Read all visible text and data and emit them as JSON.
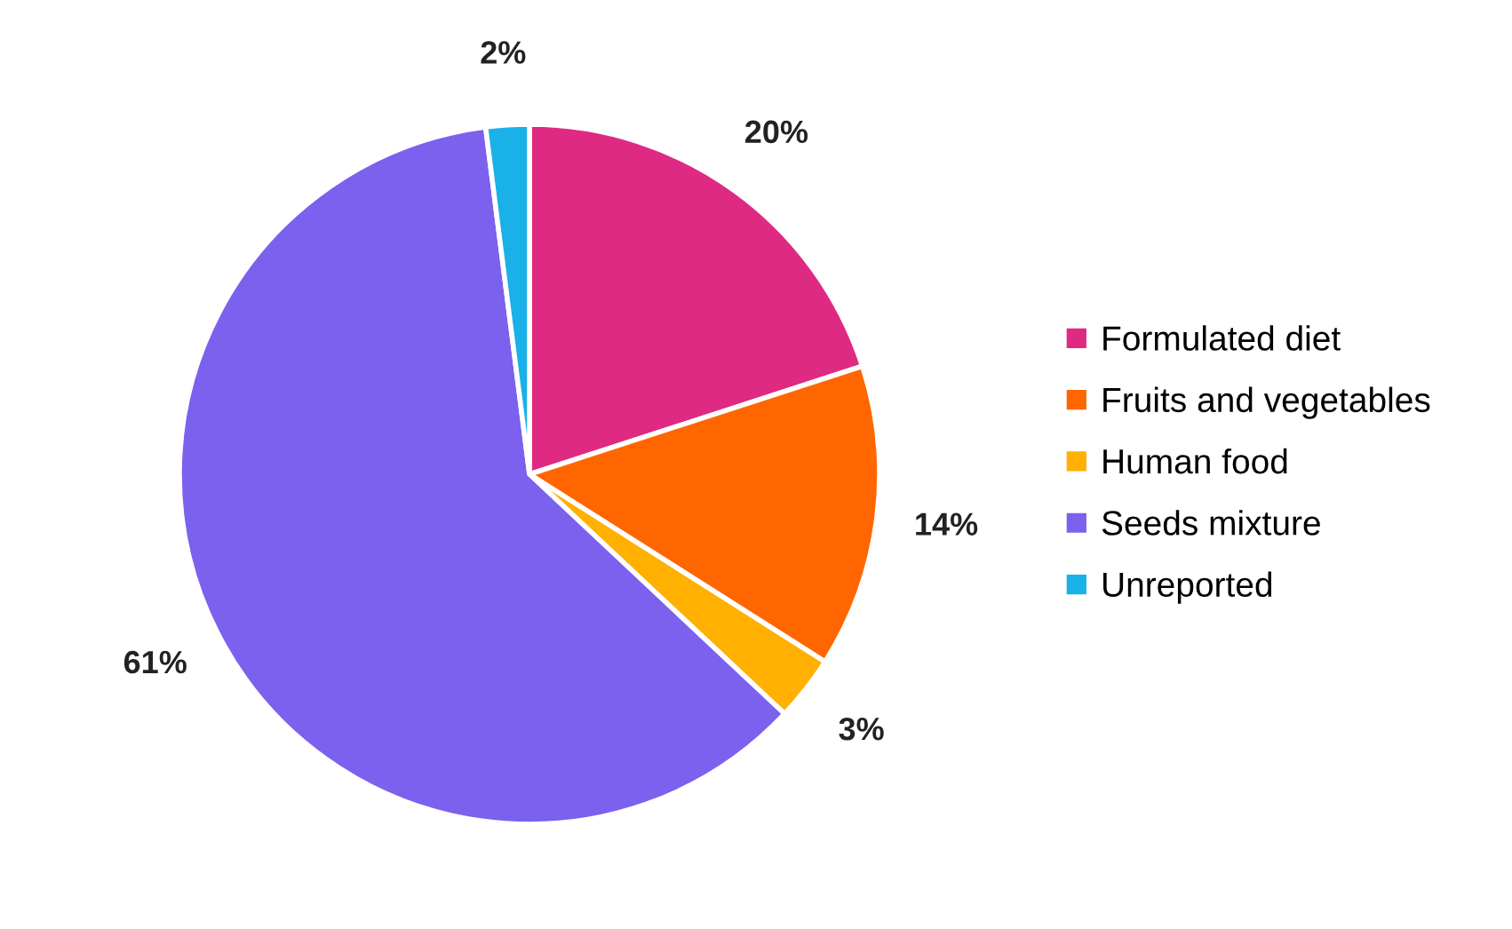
{
  "chart_data": {
    "type": "pie",
    "categories": [
      "Formulated diet",
      "Fruits and vegetables",
      "Human food",
      "Seeds mixture",
      "Unreported"
    ],
    "values": [
      20,
      14,
      3,
      61,
      2
    ],
    "colors": [
      "#de2a82",
      "#ff6600",
      "#ffb000",
      "#7b61ee",
      "#1ab0e8"
    ],
    "value_labels": [
      "20%",
      "14%",
      "3%",
      "61%",
      "2%"
    ],
    "legend": "right"
  }
}
